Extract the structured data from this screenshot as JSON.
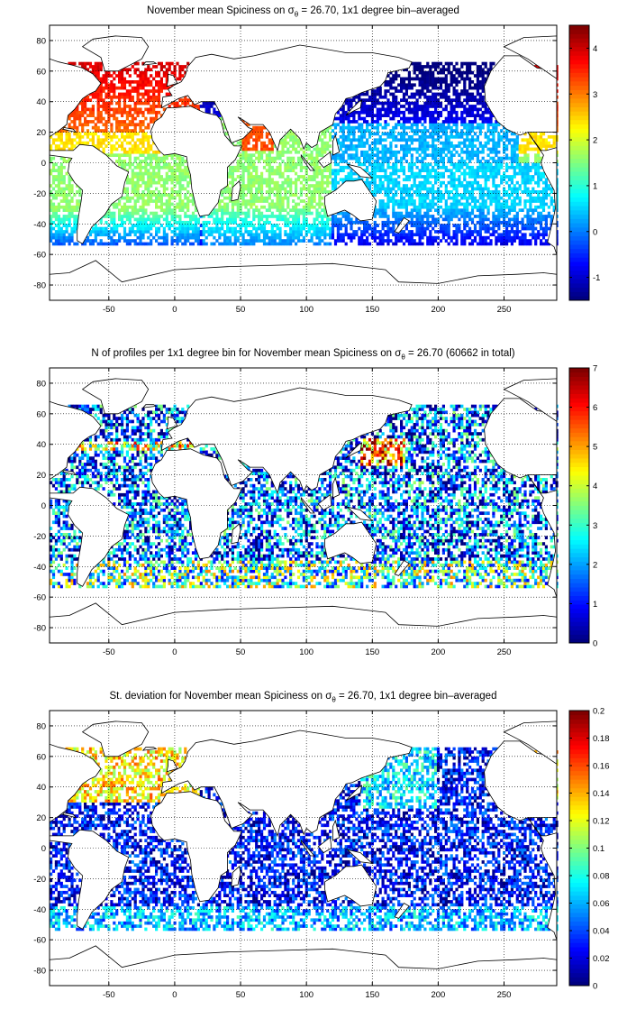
{
  "chart_data": [
    {
      "type": "heatmap",
      "title_prefix": "November mean Spiciness on ",
      "title_symbol": "σ",
      "title_subscript": "θ",
      "title_suffix": " = 26.70, 1x1 degree bin–averaged",
      "x_ticks": [
        "-50",
        "0",
        "50",
        "100",
        "150",
        "200",
        "250"
      ],
      "y_ticks": [
        "80",
        "60",
        "40",
        "20",
        "0",
        "-20",
        "-40",
        "-60",
        "-80"
      ],
      "xlim": [
        -95,
        290
      ],
      "ylim": [
        -90,
        90
      ],
      "colorbar_ticks": [
        "4",
        "3",
        "2",
        "1",
        "0",
        "-1"
      ],
      "clim": [
        -1.5,
        4.5
      ],
      "grid": true,
      "colormap": "jet"
    },
    {
      "type": "heatmap",
      "title_prefix": "N of profiles per 1x1 degree bin for November mean Spiciness on ",
      "title_symbol": "σ",
      "title_subscript": "θ",
      "title_suffix": " = 26.70 (60662 in total)",
      "x_ticks": [
        "-50",
        "0",
        "50",
        "100",
        "150",
        "200",
        "250"
      ],
      "y_ticks": [
        "80",
        "60",
        "40",
        "20",
        "0",
        "-20",
        "-40",
        "-60",
        "-80"
      ],
      "xlim": [
        -95,
        290
      ],
      "ylim": [
        -90,
        90
      ],
      "colorbar_ticks": [
        "7",
        "6",
        "5",
        "4",
        "3",
        "2",
        "1",
        "0"
      ],
      "clim": [
        0,
        7
      ],
      "grid": true,
      "colormap": "jet"
    },
    {
      "type": "heatmap",
      "title_prefix": "St. deviation for November mean Spiciness on ",
      "title_symbol": "σ",
      "title_subscript": "θ",
      "title_suffix": " = 26.70, 1x1 degree bin–averaged",
      "x_ticks": [
        "-50",
        "0",
        "50",
        "100",
        "150",
        "200",
        "250"
      ],
      "y_ticks": [
        "80",
        "60",
        "40",
        "20",
        "0",
        "-20",
        "-40",
        "-60",
        "-80"
      ],
      "xlim": [
        -95,
        290
      ],
      "ylim": [
        -90,
        90
      ],
      "colorbar_ticks": [
        "0.2",
        "0.18",
        "0.16",
        "0.14",
        "0.12",
        "0.1",
        "0.08",
        "0.06",
        "0.04",
        "0.02",
        "0"
      ],
      "clim": [
        0,
        0.2
      ],
      "grid": true,
      "colormap": "jet"
    }
  ]
}
